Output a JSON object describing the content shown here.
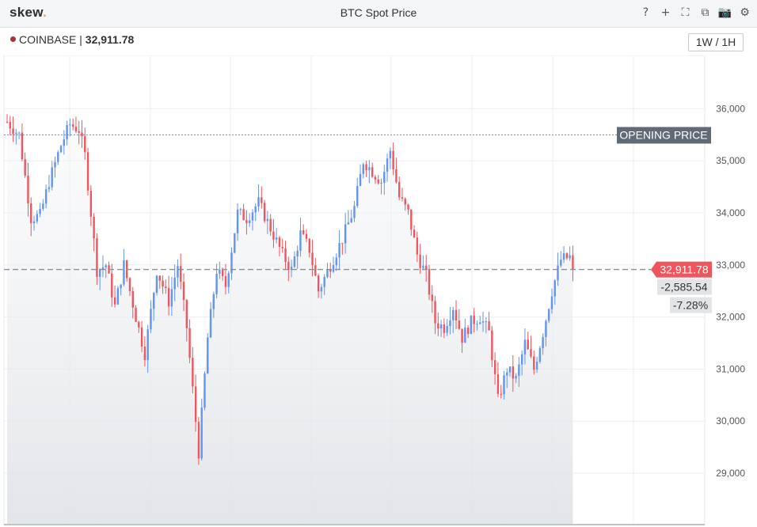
{
  "app": {
    "brand": "skew",
    "brand_dot": ".",
    "title": "BTC Spot Price"
  },
  "toolbar": {
    "icons": [
      {
        "name": "help-icon",
        "glyph": "?"
      },
      {
        "name": "add-icon",
        "glyph": "+"
      },
      {
        "name": "fullscreen-icon",
        "glyph": "⛶"
      },
      {
        "name": "duplicate-icon",
        "glyph": "⧉"
      },
      {
        "name": "camera-icon",
        "glyph": "📷"
      },
      {
        "name": "gear-icon",
        "glyph": "⚙"
      }
    ]
  },
  "source": {
    "exchange": "COINBASE",
    "separator": "|",
    "price": "32,911.78"
  },
  "timeframe": {
    "label": "1W / 1H"
  },
  "tags": {
    "opening_price_label": "OPENING PRICE",
    "current_price": "32,911.78",
    "change_abs": "-2,585.54",
    "change_pct": "-7.28%"
  },
  "colors": {
    "up": "#6495ed",
    "down": "#f0545c",
    "opening_tag_bg": "#5f6b76",
    "price_tag_bg": "#f0545c",
    "change_tag_bg": "#e2e4e7"
  },
  "chart_data": {
    "type": "candlestick",
    "title": "BTC Spot Price",
    "ylim": [
      28000,
      37000
    ],
    "yticks": [
      29000,
      30000,
      31000,
      32000,
      33000,
      34000,
      35000,
      36000
    ],
    "ytick_labels": [
      "29,000",
      "30,000",
      "31,000",
      "32,000",
      "33,000",
      "34,000",
      "35,000",
      "36,000"
    ],
    "opening_price": 35497.32,
    "last_price": 32911.78,
    "grid": true,
    "anchors": [
      [
        0,
        35750
      ],
      [
        4,
        35500
      ],
      [
        8,
        33900
      ],
      [
        11,
        33950
      ],
      [
        14,
        34600
      ],
      [
        18,
        35300
      ],
      [
        21,
        35700
      ],
      [
        24,
        35600
      ],
      [
        26,
        35100
      ],
      [
        30,
        32900
      ],
      [
        33,
        33000
      ],
      [
        36,
        32200
      ],
      [
        39,
        33000
      ],
      [
        43,
        32000
      ],
      [
        46,
        31300
      ],
      [
        50,
        32900
      ],
      [
        54,
        32300
      ],
      [
        57,
        33000
      ],
      [
        60,
        31800
      ],
      [
        64,
        29400
      ],
      [
        67,
        31600
      ],
      [
        70,
        32900
      ],
      [
        73,
        32600
      ],
      [
        77,
        34000
      ],
      [
        80,
        33900
      ],
      [
        84,
        34200
      ],
      [
        88,
        33700
      ],
      [
        92,
        33200
      ],
      [
        95,
        32900
      ],
      [
        98,
        33600
      ],
      [
        101,
        33300
      ],
      [
        104,
        32500
      ],
      [
        108,
        33000
      ],
      [
        112,
        33500
      ],
      [
        116,
        34100
      ],
      [
        119,
        35000
      ],
      [
        122,
        34800
      ],
      [
        125,
        34600
      ],
      [
        128,
        35200
      ],
      [
        131,
        34300
      ],
      [
        134,
        34000
      ],
      [
        137,
        33200
      ],
      [
        140,
        32800
      ],
      [
        143,
        31900
      ],
      [
        146,
        31800
      ],
      [
        149,
        32200
      ],
      [
        152,
        31600
      ],
      [
        155,
        31900
      ],
      [
        158,
        32000
      ],
      [
        161,
        31700
      ],
      [
        164,
        30400
      ],
      [
        167,
        31000
      ],
      [
        170,
        30800
      ],
      [
        173,
        31500
      ],
      [
        176,
        31000
      ],
      [
        179,
        31700
      ],
      [
        182,
        32500
      ],
      [
        185,
        33100
      ],
      [
        188,
        33150
      ],
      [
        189,
        32911.78
      ]
    ]
  }
}
